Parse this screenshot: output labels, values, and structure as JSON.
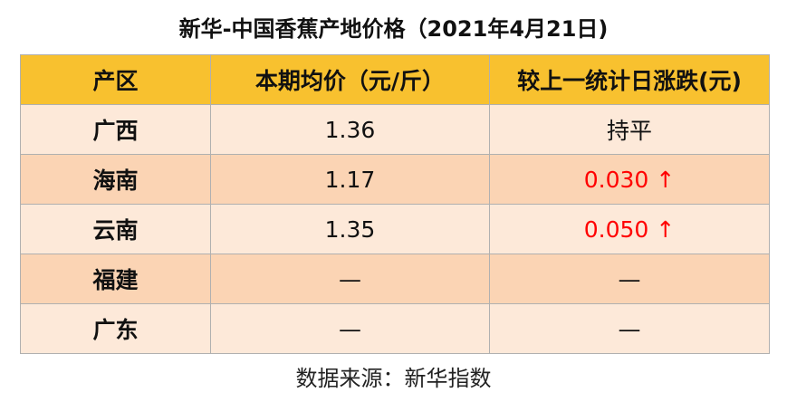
{
  "title": "新华-中国香蕉产地价格（2021年4月21日)",
  "table": {
    "header": [
      "产区",
      "本期均价（元/斤）",
      "较上一统计日涨跌(元)"
    ],
    "rows": [
      [
        "广西",
        "1.36",
        "持平"
      ],
      [
        "海南",
        "1.17",
        "0.030 ↑"
      ],
      [
        "云南",
        "1.35",
        "0.050 ↑"
      ],
      [
        "福建",
        "—",
        "—"
      ],
      [
        "广东",
        "—",
        "—"
      ]
    ]
  },
  "source": "数据来源：新华指数"
}
